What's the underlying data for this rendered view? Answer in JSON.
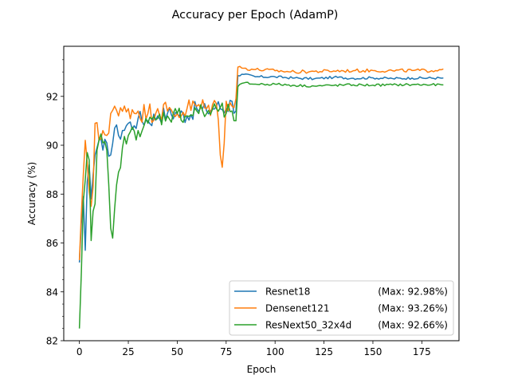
{
  "chart_data": {
    "type": "line",
    "title": "Accuracy per Epoch (AdamP)",
    "xlabel": "Epoch",
    "ylabel": "Accuracy (%)",
    "xlim": [
      -8,
      194
    ],
    "ylim": [
      82,
      94.05
    ],
    "xticks": [
      0,
      25,
      50,
      75,
      100,
      125,
      150,
      175
    ],
    "yticks": [
      82,
      84,
      86,
      88,
      90,
      92
    ],
    "grid": false,
    "legend_position": "lower right",
    "colors": [
      "#1f77b4",
      "#ff7f0e",
      "#2ca02c"
    ],
    "series": [
      {
        "name": "Resnet18",
        "max_label": "(Max: 92.98%)",
        "color": "#1f77b4",
        "anchors": [
          [
            0,
            85.2
          ],
          [
            1,
            86.8
          ],
          [
            2,
            87.9
          ],
          [
            3,
            85.7
          ],
          [
            4,
            88.5
          ],
          [
            5,
            89.2
          ],
          [
            6,
            87.8
          ],
          [
            7,
            88.8
          ],
          [
            8,
            89.6
          ],
          [
            9,
            89.9
          ],
          [
            10,
            90.2
          ],
          [
            12,
            89.8
          ],
          [
            14,
            90.1
          ],
          [
            16,
            89.6
          ],
          [
            18,
            90.7
          ],
          [
            20,
            90.4
          ],
          [
            22,
            90.6
          ],
          [
            25,
            90.9
          ],
          [
            28,
            90.8
          ],
          [
            30,
            91.1
          ],
          [
            35,
            91.0
          ],
          [
            40,
            91.2
          ],
          [
            45,
            91.3
          ],
          [
            50,
            91.3
          ],
          [
            55,
            91.2
          ],
          [
            60,
            91.5
          ],
          [
            65,
            91.4
          ],
          [
            70,
            91.6
          ],
          [
            75,
            91.5
          ],
          [
            78,
            91.8
          ],
          [
            80,
            91.4
          ],
          [
            81,
            92.85
          ],
          [
            84,
            92.9
          ],
          [
            90,
            92.8
          ],
          [
            100,
            92.8
          ],
          [
            110,
            92.75
          ],
          [
            120,
            92.72
          ],
          [
            130,
            92.78
          ],
          [
            140,
            92.74
          ],
          [
            150,
            92.76
          ],
          [
            160,
            92.73
          ],
          [
            170,
            92.75
          ],
          [
            186,
            92.75
          ]
        ],
        "noise": 0.35,
        "noise_after": 0.05
      },
      {
        "name": "Densenet121",
        "max_label": "(Max: 93.26%)",
        "color": "#ff7f0e",
        "anchors": [
          [
            0,
            85.3
          ],
          [
            1,
            87.2
          ],
          [
            2,
            88.8
          ],
          [
            3,
            90.2
          ],
          [
            4,
            89.3
          ],
          [
            5,
            88.1
          ],
          [
            6,
            87.5
          ],
          [
            7,
            88.3
          ],
          [
            8,
            90.9
          ],
          [
            10,
            90.2
          ],
          [
            12,
            90.6
          ],
          [
            14,
            90.4
          ],
          [
            16,
            91.3
          ],
          [
            18,
            91.6
          ],
          [
            20,
            91.2
          ],
          [
            25,
            91.5
          ],
          [
            30,
            91.4
          ],
          [
            35,
            91.3
          ],
          [
            40,
            91.5
          ],
          [
            45,
            91.4
          ],
          [
            50,
            91.3
          ],
          [
            55,
            91.5
          ],
          [
            60,
            91.6
          ],
          [
            65,
            91.5
          ],
          [
            70,
            91.7
          ],
          [
            73,
            89.1
          ],
          [
            75,
            91.8
          ],
          [
            78,
            91.6
          ],
          [
            80,
            91.9
          ],
          [
            81,
            93.2
          ],
          [
            84,
            93.15
          ],
          [
            90,
            93.1
          ],
          [
            100,
            93.05
          ],
          [
            110,
            93.0
          ],
          [
            120,
            93.02
          ],
          [
            130,
            93.04
          ],
          [
            140,
            93.05
          ],
          [
            150,
            93.06
          ],
          [
            160,
            93.05
          ],
          [
            170,
            93.06
          ],
          [
            180,
            93.05
          ],
          [
            186,
            93.12
          ]
        ],
        "noise": 0.45,
        "noise_after": 0.07
      },
      {
        "name": "ResNext50_32x4d",
        "max_label": "(Max: 92.66%)",
        "color": "#2ca02c",
        "anchors": [
          [
            0,
            82.5
          ],
          [
            1,
            84.8
          ],
          [
            2,
            87.7
          ],
          [
            3,
            88.6
          ],
          [
            4,
            89.7
          ],
          [
            5,
            89.4
          ],
          [
            6,
            86.1
          ],
          [
            7,
            87.3
          ],
          [
            8,
            87.6
          ],
          [
            9,
            89.8
          ],
          [
            10,
            90.2
          ],
          [
            12,
            90.1
          ],
          [
            14,
            89.8
          ],
          [
            16,
            86.6
          ],
          [
            17,
            86.2
          ],
          [
            18,
            87.4
          ],
          [
            20,
            88.9
          ],
          [
            22,
            89.9
          ],
          [
            25,
            90.4
          ],
          [
            30,
            90.6
          ],
          [
            35,
            90.9
          ],
          [
            40,
            91.1
          ],
          [
            45,
            91.2
          ],
          [
            50,
            91.3
          ],
          [
            55,
            91.2
          ],
          [
            60,
            91.4
          ],
          [
            65,
            91.3
          ],
          [
            70,
            91.5
          ],
          [
            75,
            91.3
          ],
          [
            78,
            91.4
          ],
          [
            80,
            91.0
          ],
          [
            81,
            92.4
          ],
          [
            84,
            92.55
          ],
          [
            90,
            92.5
          ],
          [
            100,
            92.5
          ],
          [
            110,
            92.45
          ],
          [
            120,
            92.42
          ],
          [
            130,
            92.45
          ],
          [
            140,
            92.47
          ],
          [
            150,
            92.46
          ],
          [
            160,
            92.47
          ],
          [
            170,
            92.48
          ],
          [
            186,
            92.47
          ]
        ],
        "noise": 0.35,
        "noise_after": 0.05
      }
    ]
  }
}
